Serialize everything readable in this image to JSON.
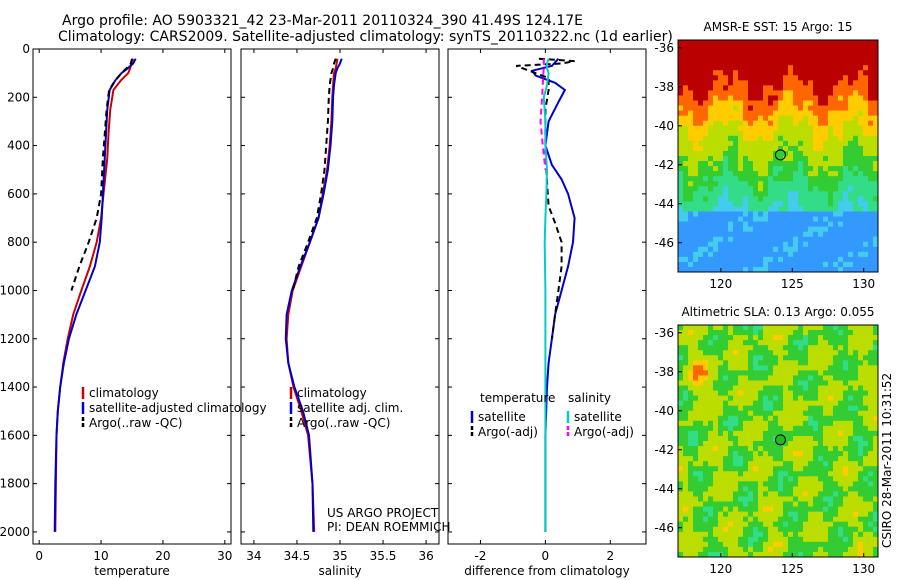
{
  "header": {
    "title_line1": "Argo profile: AO 5903321_42 23-Mar-2011 20110324_390 41.49S 124.17E",
    "title_line2": "Climatology: CARS2009. Satellite-adjusted climatology: synTS_20110322.nc (1d earlier)"
  },
  "side_label": "CSIRO 28-Mar-2011 10:31:52",
  "colors": {
    "climatology": "#cc0000",
    "satellite": "#0000cc",
    "argo": "#000000",
    "satellite_salinity": "#00cccc",
    "argo_salinity_adj": "#ff00ff"
  },
  "chart_data": [
    {
      "id": "temperature",
      "type": "line",
      "xlabel": "temperature",
      "xlim": [
        -1,
        31
      ],
      "ylim": [
        2050,
        0
      ],
      "xticks": [
        0,
        10,
        20,
        30
      ],
      "yticks": [
        0,
        200,
        400,
        600,
        800,
        1000,
        1200,
        1400,
        1600,
        1800,
        2000
      ],
      "legend": {
        "placement": "lower-right",
        "entries": [
          "climatology",
          "satellite-adjusted climatology",
          "Argo(..raw -QC)"
        ]
      },
      "series": [
        {
          "name": "climatology",
          "color": "#cc0000",
          "dash": "",
          "x": [
            15.2,
            14.9,
            14.7,
            14.4,
            13.2,
            12.0,
            11.5,
            11.2,
            11.0,
            10.6,
            10.4,
            10.0,
            9.3,
            8.2,
            6.8,
            5.5,
            4.6,
            3.9,
            3.4,
            3.0,
            2.8,
            2.7,
            2.6
          ],
          "y": [
            40,
            60,
            80,
            100,
            130,
            170,
            250,
            350,
            450,
            550,
            600,
            700,
            800,
            900,
            1000,
            1100,
            1200,
            1300,
            1400,
            1500,
            1600,
            1800,
            2000
          ]
        },
        {
          "name": "satellite-adjusted climatology",
          "color": "#0000cc",
          "dash": "",
          "x": [
            15.6,
            15.2,
            14.3,
            13.3,
            12.3,
            11.4,
            11.0,
            10.8,
            10.6,
            10.4,
            10.3,
            10.1,
            9.8,
            9.0,
            7.5,
            6.0,
            4.8,
            4.0,
            3.4,
            3.0,
            2.8,
            2.6,
            2.5
          ],
          "y": [
            40,
            60,
            80,
            100,
            130,
            170,
            250,
            350,
            450,
            550,
            600,
            700,
            800,
            900,
            1000,
            1100,
            1200,
            1300,
            1400,
            1500,
            1600,
            1800,
            2000
          ]
        },
        {
          "name": "Argo(..raw -QC)",
          "color": "#000000",
          "dash": "6,4",
          "x": [
            15.0,
            14.8,
            14.1,
            13.3,
            12.3,
            11.3,
            10.9,
            10.6,
            10.3,
            10.1,
            10.0,
            9.3,
            8.0,
            6.5,
            5.2
          ],
          "y": [
            40,
            60,
            80,
            100,
            130,
            170,
            250,
            350,
            450,
            550,
            600,
            700,
            800,
            900,
            1000
          ]
        }
      ]
    },
    {
      "id": "salinity",
      "type": "line",
      "xlabel": "salinity",
      "xlim": [
        33.85,
        36.15
      ],
      "ylim": [
        2050,
        0
      ],
      "xticks": [
        34,
        34.5,
        35,
        35.5,
        36
      ],
      "yticks": [
        0,
        200,
        400,
        600,
        800,
        1000,
        1200,
        1400,
        1600,
        1800,
        2000
      ],
      "legend": {
        "placement": "lower-right",
        "entries": [
          "climatology",
          "satellite adj. clim.",
          "Argo(..raw -QC)"
        ]
      },
      "annotation": [
        "US ARGO PROJECT",
        "PI: DEAN ROEMMICH"
      ],
      "series": [
        {
          "name": "climatology",
          "color": "#cc0000",
          "dash": "",
          "x": [
            34.97,
            34.96,
            34.95,
            34.93,
            34.92,
            34.91,
            34.9,
            34.88,
            34.85,
            34.8,
            34.75,
            34.65,
            34.55,
            34.45,
            34.4,
            34.38,
            34.4,
            34.46,
            34.55,
            34.63,
            34.68,
            34.7
          ],
          "y": [
            40,
            60,
            80,
            100,
            150,
            200,
            300,
            400,
            500,
            600,
            700,
            800,
            900,
            1000,
            1100,
            1200,
            1300,
            1400,
            1500,
            1600,
            1800,
            2000
          ]
        },
        {
          "name": "satellite adj. clim.",
          "color": "#0000cc",
          "dash": "",
          "x": [
            35.02,
            35.0,
            34.97,
            34.95,
            34.93,
            34.92,
            34.91,
            34.89,
            34.86,
            34.81,
            34.75,
            34.65,
            34.54,
            34.44,
            34.38,
            34.37,
            34.4,
            34.47,
            34.57,
            34.64,
            34.68,
            34.69
          ],
          "y": [
            40,
            60,
            80,
            100,
            150,
            200,
            300,
            400,
            500,
            600,
            700,
            800,
            900,
            1000,
            1100,
            1200,
            1300,
            1400,
            1500,
            1600,
            1800,
            2000
          ]
        },
        {
          "name": "Argo(..raw -QC)",
          "color": "#000000",
          "dash": "6,4",
          "x": [
            34.95,
            34.93,
            34.92,
            34.9,
            34.88,
            34.87,
            34.86,
            34.84,
            34.82,
            34.78,
            34.73,
            34.63,
            34.52,
            34.45
          ],
          "y": [
            40,
            60,
            80,
            100,
            150,
            200,
            300,
            400,
            500,
            600,
            700,
            800,
            900,
            1000
          ]
        }
      ]
    },
    {
      "id": "difference",
      "type": "line",
      "xlabel": "difference from climatology",
      "xlim": [
        -3,
        3.1
      ],
      "ylim": [
        2050,
        0
      ],
      "xticks": [
        -2,
        0,
        2
      ],
      "yticks": [
        0,
        200,
        400,
        600,
        800,
        1000,
        1200,
        1400,
        1600,
        1800,
        2000
      ],
      "legend": {
        "placement": "lower-right",
        "columns": [
          {
            "heading": "temperature",
            "entries": [
              "satellite",
              "Argo(-adj)"
            ]
          },
          {
            "heading": "salinity",
            "entries": [
              "satellite",
              "Argo(-adj)"
            ]
          }
        ]
      },
      "series": [
        {
          "name": "satellite",
          "group": "temperature",
          "color": "#0000cc",
          "dash": "",
          "x": [
            0.4,
            0.2,
            -0.4,
            -0.3,
            0.3,
            0.6,
            0.4,
            0.1,
            0.0,
            0.2,
            0.5,
            0.7,
            0.9,
            0.85,
            0.7,
            0.5,
            0.3,
            0.2,
            0.1,
            0.05,
            0.0,
            0.0
          ],
          "y": [
            40,
            70,
            90,
            110,
            140,
            170,
            220,
            300,
            400,
            480,
            540,
            600,
            700,
            800,
            900,
            1000,
            1100,
            1200,
            1300,
            1400,
            1600,
            2000
          ]
        },
        {
          "name": "Argo(-adj)",
          "group": "temperature",
          "color": "#000000",
          "dash": "6,4",
          "x": [
            -0.2,
            0.9,
            0.5,
            -0.9,
            -0.5,
            0.1,
            0.1,
            0.0,
            0.0,
            0.05,
            0.1,
            0.3,
            0.5,
            0.5,
            0.4,
            0.3,
            0.2
          ],
          "y": [
            40,
            50,
            60,
            70,
            90,
            120,
            170,
            250,
            400,
            550,
            650,
            720,
            800,
            900,
            1000,
            1100,
            1200
          ]
        },
        {
          "name": "satellite",
          "group": "salinity",
          "color": "#00cccc",
          "dash": "",
          "x": [
            0.1,
            0.05,
            0.05,
            0.1,
            0.05,
            -0.05,
            0.0,
            0.0,
            0.05,
            0.03,
            0.0,
            -0.02,
            0.0,
            0.0,
            0.0
          ],
          "y": [
            40,
            60,
            80,
            100,
            150,
            200,
            300,
            400,
            500,
            600,
            700,
            800,
            1000,
            1500,
            2000
          ]
        },
        {
          "name": "Argo(-adj)",
          "group": "salinity",
          "color": "#ff00ff",
          "dash": "6,4",
          "x": [
            -0.05,
            -0.05,
            -0.05,
            -0.06,
            -0.08,
            -0.1,
            -0.15,
            -0.08,
            0.0
          ],
          "y": [
            40,
            60,
            80,
            100,
            150,
            200,
            300,
            400,
            500
          ]
        }
      ]
    },
    {
      "id": "sst-map",
      "type": "heatmap",
      "title": "AMSR-E SST: 15 Argo: 15",
      "xlim": [
        117,
        131
      ],
      "ylim": [
        -47.5,
        -35.6
      ],
      "xticks": [
        120,
        125,
        130
      ],
      "yticks": [
        -36,
        -38,
        -40,
        -42,
        -44,
        -46
      ],
      "marker": {
        "lon": 124.17,
        "lat": -41.49,
        "fill": "none"
      }
    },
    {
      "id": "sla-map",
      "type": "heatmap",
      "title": "Altimetric SLA: 0.13 Argo: 0.055",
      "xlim": [
        117,
        131
      ],
      "ylim": [
        -47.5,
        -35.6
      ],
      "xticks": [
        120,
        125,
        130
      ],
      "yticks": [
        -36,
        -38,
        -40,
        -42,
        -44,
        -46
      ],
      "marker": {
        "lon": 124.17,
        "lat": -41.49,
        "fill": "#22bb22"
      }
    }
  ]
}
